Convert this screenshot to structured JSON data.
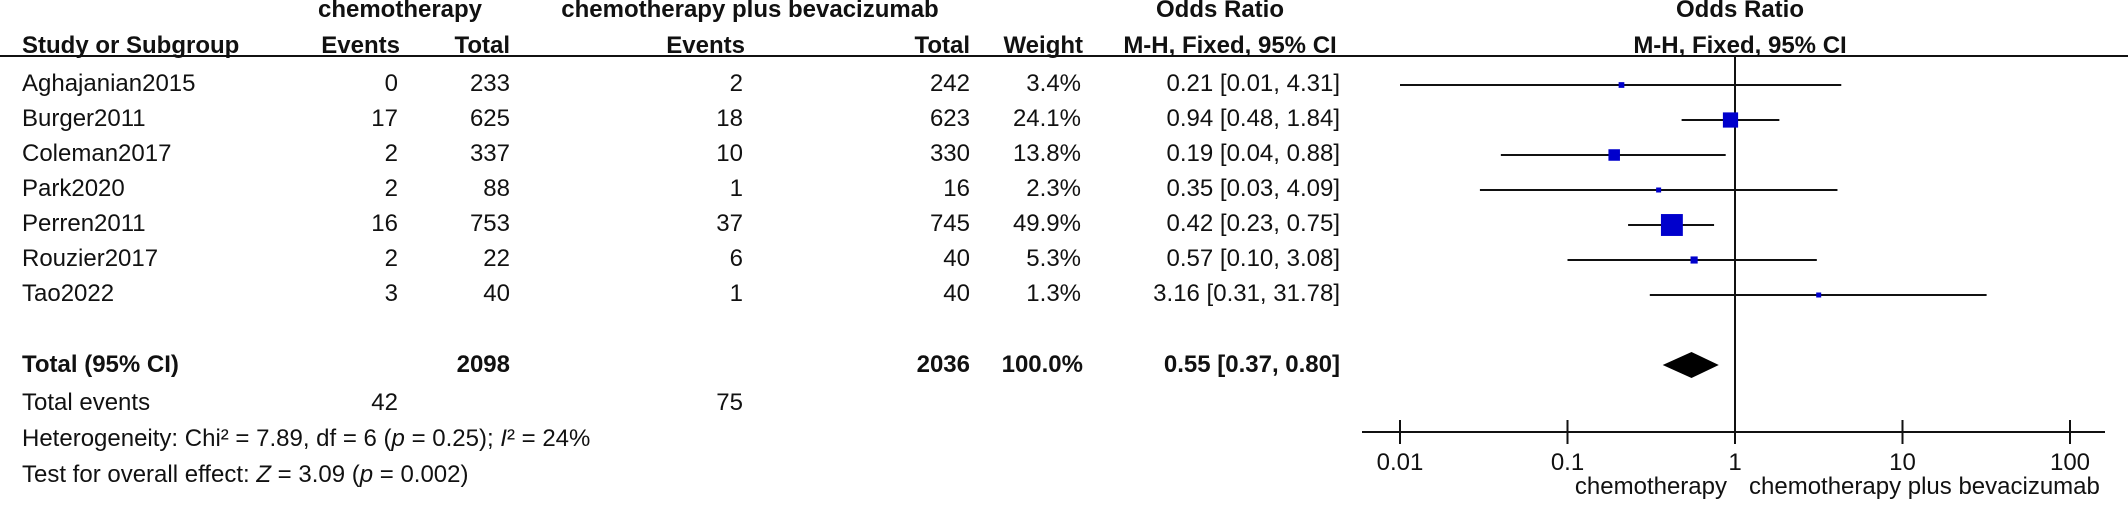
{
  "header": {
    "group1": "chemotherapy",
    "group2": "chemotherapy plus bevacizumab",
    "or_top": "Odds Ratio",
    "study": "Study or Subgroup",
    "events1": "Events",
    "total1": "Total",
    "events2": "Events",
    "total2": "Total",
    "weight": "Weight",
    "method": "M-H, Fixed, 95% CI",
    "plot_top": "Odds Ratio",
    "plot_method": "M-H, Fixed, 95% CI"
  },
  "studies": [
    {
      "name": "Aghajanian2015",
      "e1": "0",
      "t1": "233",
      "e2": "2",
      "t2": "242",
      "weight": "3.4%",
      "ci": "0.21 [0.01, 4.31]"
    },
    {
      "name": "Burger2011",
      "e1": "17",
      "t1": "625",
      "e2": "18",
      "t2": "623",
      "weight": "24.1%",
      "ci": "0.94 [0.48, 1.84]"
    },
    {
      "name": "Coleman2017",
      "e1": "2",
      "t1": "337",
      "e2": "10",
      "t2": "330",
      "weight": "13.8%",
      "ci": "0.19 [0.04, 0.88]"
    },
    {
      "name": "Park2020",
      "e1": "2",
      "t1": "88",
      "e2": "1",
      "t2": "16",
      "weight": "2.3%",
      "ci": "0.35 [0.03, 4.09]"
    },
    {
      "name": "Perren2011",
      "e1": "16",
      "t1": "753",
      "e2": "37",
      "t2": "745",
      "weight": "49.9%",
      "ci": "0.42 [0.23, 0.75]"
    },
    {
      "name": "Rouzier2017",
      "e1": "2",
      "t1": "22",
      "e2": "6",
      "t2": "40",
      "weight": "5.3%",
      "ci": "0.57 [0.10, 3.08]"
    },
    {
      "name": "Tao2022",
      "e1": "3",
      "t1": "40",
      "e2": "1",
      "t2": "40",
      "weight": "1.3%",
      "ci": "3.16 [0.31, 31.78]"
    }
  ],
  "total": {
    "label": "Total (95% CI)",
    "t1": "2098",
    "t2": "2036",
    "weight": "100.0%",
    "ci": "0.55 [0.37, 0.80]"
  },
  "total_events": {
    "label": "Total events",
    "e1": "42",
    "e2": "75"
  },
  "heterogeneity": {
    "prefix": "Heterogeneity: Chi² = 7.89, df = 6 (",
    "p": "p",
    "mid": " = 0.25); ",
    "i": "I",
    "suffix": "² = 24%"
  },
  "overall": {
    "prefix": "Test for overall effect: ",
    "z": "Z",
    "mid": " = 3.09 (",
    "p": "p",
    "suffix": " = 0.002)"
  },
  "chart_data": {
    "type": "forest",
    "x_scale": "log",
    "xlim": [
      0.01,
      100
    ],
    "ticks": [
      0.01,
      0.1,
      1,
      10,
      100
    ],
    "tick_labels": [
      "0.01",
      "0.1",
      "1",
      "10",
      "100"
    ],
    "favours_left": "chemotherapy",
    "favours_right": "chemotherapy plus bevacizumab",
    "marker_color": "#0000cc",
    "diamond_color": "#000000",
    "studies": [
      {
        "name": "Aghajanian2015",
        "or": 0.21,
        "lo": 0.01,
        "hi": 4.31,
        "weight": 3.4
      },
      {
        "name": "Burger2011",
        "or": 0.94,
        "lo": 0.48,
        "hi": 1.84,
        "weight": 24.1
      },
      {
        "name": "Coleman2017",
        "or": 0.19,
        "lo": 0.04,
        "hi": 0.88,
        "weight": 13.8
      },
      {
        "name": "Park2020",
        "or": 0.35,
        "lo": 0.03,
        "hi": 4.09,
        "weight": 2.3
      },
      {
        "name": "Perren2011",
        "or": 0.42,
        "lo": 0.23,
        "hi": 0.75,
        "weight": 49.9
      },
      {
        "name": "Rouzier2017",
        "or": 0.57,
        "lo": 0.1,
        "hi": 3.08,
        "weight": 5.3
      },
      {
        "name": "Tao2022",
        "or": 3.16,
        "lo": 0.31,
        "hi": 31.78,
        "weight": 1.3
      }
    ],
    "pooled": {
      "or": 0.55,
      "lo": 0.37,
      "hi": 0.8
    }
  }
}
